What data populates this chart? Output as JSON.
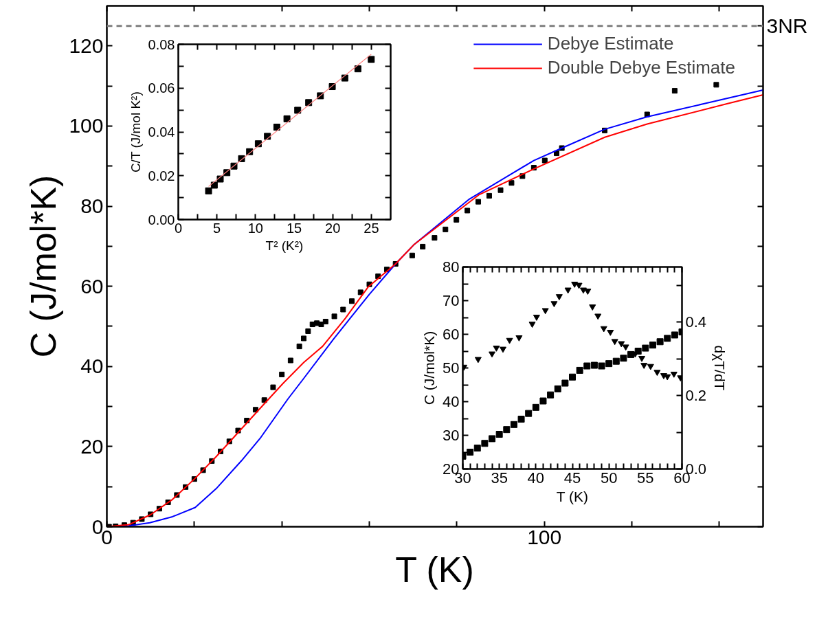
{
  "chart_data": [
    {
      "type": "line",
      "xlabel": "T (K)",
      "ylabel": "C (J/mol*K)",
      "xlim": [
        0,
        150
      ],
      "xticks": [
        0,
        {
          "value": 20,
          "label": null
        },
        {
          "value": 40,
          "label": null
        },
        {
          "value": 60,
          "label": null
        },
        {
          "value": 80,
          "label": null
        },
        100,
        {
          "value": 120,
          "label": null
        },
        {
          "value": 140,
          "label": null
        }
      ],
      "ylim": [
        0,
        130
      ],
      "yticks": [
        0,
        {
          "value": 10,
          "label": null
        },
        20,
        {
          "value": 30,
          "label": null
        },
        40,
        {
          "value": 50,
          "label": null
        },
        60,
        {
          "value": 70,
          "label": null
        },
        80,
        {
          "value": 90,
          "label": null
        },
        100,
        {
          "value": 110,
          "label": null
        },
        120
      ],
      "legend": "top right",
      "ref_lines": [
        {
          "axis": "y",
          "value": 125,
          "label": "3NR",
          "color": "#808080",
          "line_style": "dashed"
        }
      ],
      "series": [
        {
          "type": "scatter",
          "marker": "square",
          "color": "#000000",
          "x": [
            0.5,
            2,
            4,
            6,
            8,
            10,
            12,
            14,
            16,
            18,
            20,
            22,
            24,
            26,
            28,
            30,
            32,
            34,
            36,
            38,
            40,
            42,
            44,
            45,
            46,
            47,
            48,
            49,
            50,
            52,
            54,
            56,
            58,
            60,
            62,
            64,
            66,
            69.8,
            72.2,
            74.9,
            77.4,
            79.9,
            82.4,
            84.9,
            87.4,
            90.0,
            92.5,
            95.0,
            97.6,
            100.1,
            102.8,
            104,
            113.8,
            123.5,
            129.8,
            139.3
          ],
          "values": [
            0,
            0.1,
            0.4,
            1.0,
            1.9,
            3.1,
            4.5,
            6.1,
            7.9,
            9.9,
            11.9,
            14.1,
            16.4,
            18.8,
            21.3,
            24,
            26.5,
            29.2,
            31.6,
            34.8,
            38,
            41.5,
            45,
            47,
            48.8,
            50.5,
            50.8,
            50.5,
            51.2,
            52.5,
            54.2,
            56.3,
            58.5,
            60.5,
            62.5,
            64.2,
            65.6,
            67.7,
            69.9,
            72.1,
            74.2,
            76.6,
            78.9,
            81.1,
            82.6,
            84.0,
            85.8,
            87.5,
            89.6,
            91.4,
            93.2,
            94.5,
            98.9,
            102.9,
            108.8,
            110.3
          ]
        },
        {
          "name": "Debye Estimate",
          "color": "#0000ff",
          "x": [
            0,
            5,
            9.8,
            15,
            20.2,
            25,
            30.8,
            35,
            41.4,
            45,
            51.8,
            60,
            66,
            70.3,
            82.9,
            97.6,
            104,
            113.8,
            123.5,
            136.6,
            150
          ],
          "values": [
            0,
            0.2,
            1,
            2.5,
            4.8,
            9.5,
            16.5,
            22,
            31.9,
            37,
            46.8,
            58,
            65.6,
            70.5,
            81.8,
            91.4,
            94.5,
            99.2,
            102.3,
            105.6,
            109
          ]
        },
        {
          "name": "Double Debye Estimate",
          "color": "#ff0000",
          "x": [
            0,
            5,
            10,
            15,
            20,
            25,
            30,
            35,
            40.3,
            45,
            49.3,
            54.5,
            59.7,
            66,
            70.3,
            85,
            97.6,
            113.8,
            123.5,
            141.9,
            150
          ],
          "values": [
            0,
            0.5,
            3.0,
            6.8,
            11.9,
            17.5,
            23.5,
            29.5,
            35.8,
            41,
            45,
            52,
            59.8,
            65.6,
            70.5,
            82.8,
            89.3,
            97.2,
            100.5,
            105.6,
            107.8
          ]
        }
      ]
    },
    {
      "type": "scatter",
      "xlabel": "T² (K²)",
      "ylabel": "C/T (J/mol K²)",
      "xlim": [
        0,
        27.5
      ],
      "xticks": [
        0,
        {
          "value": 2.5,
          "label": null
        },
        5,
        {
          "value": 7.5,
          "label": null
        },
        10,
        {
          "value": 12.5,
          "label": null
        },
        15,
        {
          "value": 17.5,
          "label": null
        },
        20,
        {
          "value": 22.5,
          "label": null
        },
        25
      ],
      "ylim": [
        0,
        0.08
      ],
      "yticks": [
        {
          "value": 0,
          "label": "0.00"
        },
        {
          "value": 0.01,
          "label": null
        },
        0.02,
        {
          "value": 0.03,
          "label": null
        },
        0.04,
        {
          "value": 0.05,
          "label": null
        },
        0.06,
        {
          "value": 0.07,
          "label": null
        },
        0.08
      ],
      "series": [
        {
          "marker": "square",
          "color": "#000000",
          "x": [
            3.92,
            4.66,
            5.43,
            6.29,
            7.21,
            8.19,
            9.23,
            10.36,
            11.54,
            12.76,
            14.07,
            15.46,
            16.88,
            18.4,
            19.94,
            21.57,
            23.26,
            24.99
          ],
          "values": [
            0.0131,
            0.0157,
            0.0185,
            0.0214,
            0.0244,
            0.0278,
            0.031,
            0.0346,
            0.038,
            0.0422,
            0.046,
            0.0499,
            0.0534,
            0.0565,
            0.0607,
            0.0646,
            0.0688,
            0.0731
          ]
        },
        {
          "type": "line",
          "color": "#ff8080",
          "x": [
            3.92,
            24.99
          ],
          "values": [
            0.0151,
            0.0755
          ]
        }
      ]
    },
    {
      "type": "scatter",
      "xlabel": "T (K)",
      "ylabel": "C (J/mol*K)",
      "y2label": "dχT/dT",
      "xlim": [
        30,
        60
      ],
      "xticks": [
        30,
        {
          "value": 31,
          "label": null
        },
        {
          "value": 32,
          "label": null
        },
        {
          "value": 33,
          "label": null
        },
        {
          "value": 34,
          "label": null
        },
        35,
        {
          "value": 36,
          "label": null
        },
        {
          "value": 37,
          "label": null
        },
        {
          "value": 38,
          "label": null
        },
        {
          "value": 39,
          "label": null
        },
        40,
        {
          "value": 41,
          "label": null
        },
        {
          "value": 42,
          "label": null
        },
        {
          "value": 43,
          "label": null
        },
        {
          "value": 44,
          "label": null
        },
        45,
        {
          "value": 46,
          "label": null
        },
        {
          "value": 47,
          "label": null
        },
        {
          "value": 48,
          "label": null
        },
        {
          "value": 49,
          "label": null
        },
        50,
        {
          "value": 51,
          "label": null
        },
        {
          "value": 52,
          "label": null
        },
        {
          "value": 53,
          "label": null
        },
        {
          "value": 54,
          "label": null
        },
        55,
        {
          "value": 56,
          "label": null
        },
        {
          "value": 57,
          "label": null
        },
        {
          "value": 58,
          "label": null
        },
        {
          "value": 59,
          "label": null
        },
        60
      ],
      "ylim": [
        20,
        80
      ],
      "yticks": [
        20,
        {
          "value": 25,
          "label": null
        },
        30,
        {
          "value": 35,
          "label": null
        },
        40,
        {
          "value": 45,
          "label": null
        },
        50,
        {
          "value": 55,
          "label": null
        },
        60,
        {
          "value": 65,
          "label": null
        },
        70,
        {
          "value": 75,
          "label": null
        },
        80
      ],
      "y2lim": [
        0,
        0.55
      ],
      "y2ticks": [
        {
          "value": 0,
          "label": "0.0"
        },
        {
          "value": 0.1,
          "label": null
        },
        0.2,
        {
          "value": 0.3,
          "label": null
        },
        0.4,
        {
          "value": 0.5,
          "label": null
        }
      ],
      "series": [
        {
          "marker": "square",
          "color": "#000000",
          "x": [
            30,
            31,
            32,
            33,
            34,
            35,
            36,
            37,
            38,
            39,
            40,
            41,
            42,
            43,
            44,
            45,
            46,
            47,
            48,
            49,
            50,
            51,
            52,
            53,
            54,
            55,
            56,
            57,
            58,
            59,
            60
          ],
          "values": [
            23.8,
            25.0,
            26.2,
            27.6,
            29.0,
            30.3,
            31.7,
            33.2,
            34.8,
            36.5,
            38.3,
            40.2,
            42.0,
            43.8,
            45.5,
            47.3,
            49.3,
            50.6,
            50.8,
            50.6,
            51.3,
            52.0,
            52.9,
            54.0,
            55.0,
            55.9,
            56.8,
            57.8,
            58.8,
            59.8,
            60.7
          ]
        },
        {
          "marker": "triangle",
          "axis": "y2",
          "color": "#000000",
          "x": [
            30.15,
            32.1,
            34,
            34.6,
            35.5,
            36.4,
            37.7,
            39.5,
            40.1,
            41.3,
            42.5,
            43.2,
            44.4,
            45.3,
            45.9,
            46.5,
            47.1,
            47.75,
            48.5,
            49.3,
            50.2,
            50.8,
            51.7,
            52.3,
            53.6,
            54.5,
            54.8,
            55.7,
            56.6,
            57.5,
            58,
            58.9,
            59.8
          ],
          "values": [
            0.278,
            0.299,
            0.314,
            0.33,
            0.327,
            0.351,
            0.358,
            0.395,
            0.414,
            0.432,
            0.451,
            0.47,
            0.488,
            0.504,
            0.501,
            0.488,
            0.485,
            0.442,
            0.417,
            0.383,
            0.373,
            0.348,
            0.342,
            0.333,
            0.314,
            0.302,
            0.283,
            0.28,
            0.264,
            0.255,
            0.252,
            0.259,
            0.249
          ]
        }
      ]
    }
  ]
}
